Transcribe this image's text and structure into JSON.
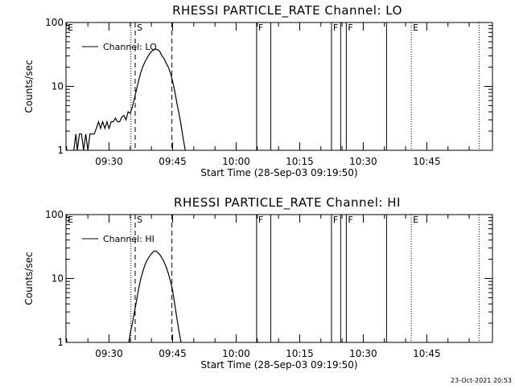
{
  "footer": {
    "timestamp": "23-Oct-2021 20:53"
  },
  "chart_data": [
    {
      "type": "line",
      "title": "RHESSI PARTICLE_RATE Channel: LO",
      "xlabel": "Start Time (28-Sep-03 09:19:50)",
      "ylabel": "Counts/sec",
      "y_scale": "log",
      "ylim": [
        1,
        100
      ],
      "y_ticks": [
        1,
        10,
        100
      ],
      "y_tick_labels": [
        "1",
        "10",
        "100"
      ],
      "xlim": [
        "09:19:50",
        "11:00:30"
      ],
      "x_ticks": [
        "09:30",
        "09:45",
        "10:00",
        "10:15",
        "10:30",
        "10:45"
      ],
      "legend": {
        "label": "Channel: LO",
        "position": "top-left"
      },
      "series": [
        {
          "name": "Channel: LO",
          "x": [
            "09:21:40",
            "09:22:10",
            "09:22:30",
            "09:23:00",
            "09:23:30",
            "09:24:00",
            "09:24:30",
            "09:25:00",
            "09:25:30",
            "09:26:00",
            "09:26:30",
            "09:27:00",
            "09:27:30",
            "09:28:00",
            "09:28:30",
            "09:29:00",
            "09:29:30",
            "09:30:00",
            "09:30:30",
            "09:31:00",
            "09:31:30",
            "09:32:00",
            "09:32:30",
            "09:33:00",
            "09:33:30",
            "09:34:00",
            "09:34:30",
            "09:35:00",
            "09:35:30",
            "09:36:00",
            "09:36:30",
            "09:37:00",
            "09:37:30",
            "09:38:00",
            "09:38:30",
            "09:39:00",
            "09:39:30",
            "09:40:00",
            "09:40:30",
            "09:41:00",
            "09:41:30",
            "09:42:00",
            "09:42:30",
            "09:43:00",
            "09:43:30",
            "09:44:00",
            "09:44:30",
            "09:45:00",
            "09:45:30",
            "09:46:00",
            "09:46:30",
            "09:47:00",
            "09:47:30",
            "09:48:00"
          ],
          "values": [
            1.0,
            1.8,
            1.0,
            1.8,
            1.8,
            1.0,
            1.8,
            1.0,
            1.8,
            1.8,
            1.8,
            2.2,
            2.8,
            2.2,
            2.8,
            2.2,
            2.8,
            2.2,
            2.8,
            2.8,
            3.2,
            2.8,
            2.8,
            3.3,
            3.5,
            3.0,
            4.0,
            3.8,
            4.8,
            6.5,
            9.0,
            12.5,
            16.5,
            20.5,
            24.5,
            28.0,
            32.0,
            35.0,
            37.0,
            38.5,
            37.5,
            35.0,
            30.0,
            27.0,
            23.0,
            20.0,
            16.0,
            12.0,
            8.5,
            5.5,
            3.8,
            2.5,
            1.5,
            1.0
          ]
        }
      ],
      "flag_lines": [
        {
          "label": "E",
          "time": "09:19:50",
          "style": "dotted"
        },
        {
          "label": "",
          "time": "09:35:10",
          "style": "dotted"
        },
        {
          "label": "S",
          "time": "09:36:10",
          "style": "dashed"
        },
        {
          "label": "",
          "time": "09:44:50",
          "style": "dashed"
        },
        {
          "label": "F",
          "time": "10:04:50",
          "style": "solid"
        },
        {
          "label": "",
          "time": "10:08:10",
          "style": "solid"
        },
        {
          "label": "F",
          "time": "10:22:30",
          "style": "solid"
        },
        {
          "label": "",
          "time": "10:24:40",
          "style": "solid"
        },
        {
          "label": "F",
          "time": "10:26:00",
          "style": "solid"
        },
        {
          "label": "",
          "time": "10:35:30",
          "style": "solid"
        },
        {
          "label": "E",
          "time": "10:41:20",
          "style": "dotted"
        },
        {
          "label": "",
          "time": "10:57:20",
          "style": "dotted"
        }
      ]
    },
    {
      "type": "line",
      "title": "RHESSI PARTICLE_RATE Channel: HI",
      "xlabel": "Start Time (28-Sep-03 09:19:50)",
      "ylabel": "Counts/sec",
      "y_scale": "log",
      "ylim": [
        1,
        100
      ],
      "y_ticks": [
        1,
        10,
        100
      ],
      "y_tick_labels": [
        "1",
        "10",
        "100"
      ],
      "xlim": [
        "09:19:50",
        "11:00:30"
      ],
      "x_ticks": [
        "09:30",
        "09:45",
        "10:00",
        "10:15",
        "10:30",
        "10:45"
      ],
      "legend": {
        "label": "Channel: HI",
        "position": "top-left"
      },
      "series": [
        {
          "name": "Channel: HI",
          "x": [
            "09:34:40",
            "09:35:00",
            "09:35:30",
            "09:36:00",
            "09:36:30",
            "09:37:00",
            "09:37:30",
            "09:38:00",
            "09:38:30",
            "09:39:00",
            "09:39:30",
            "09:40:00",
            "09:40:30",
            "09:41:00",
            "09:41:30",
            "09:42:00",
            "09:42:30",
            "09:43:00",
            "09:43:30",
            "09:44:00",
            "09:44:30",
            "09:45:00",
            "09:45:30",
            "09:46:00",
            "09:46:30",
            "09:47:00"
          ],
          "values": [
            1.0,
            1.4,
            2.0,
            3.0,
            4.5,
            7.0,
            10.0,
            13.0,
            16.5,
            19.5,
            22.0,
            24.5,
            26.5,
            27.0,
            25.5,
            23.5,
            21.0,
            18.0,
            15.0,
            12.0,
            9.0,
            6.5,
            4.0,
            2.4,
            1.5,
            1.0
          ]
        }
      ],
      "flag_lines": [
        {
          "label": "E",
          "time": "09:19:50",
          "style": "dotted"
        },
        {
          "label": "",
          "time": "09:35:10",
          "style": "dotted"
        },
        {
          "label": "S",
          "time": "09:36:10",
          "style": "dashed"
        },
        {
          "label": "",
          "time": "09:44:50",
          "style": "dashed"
        },
        {
          "label": "F",
          "time": "10:04:50",
          "style": "solid"
        },
        {
          "label": "",
          "time": "10:08:10",
          "style": "solid"
        },
        {
          "label": "F",
          "time": "10:22:30",
          "style": "solid"
        },
        {
          "label": "",
          "time": "10:24:40",
          "style": "solid"
        },
        {
          "label": "F",
          "time": "10:26:00",
          "style": "solid"
        },
        {
          "label": "",
          "time": "10:35:30",
          "style": "solid"
        },
        {
          "label": "E",
          "time": "10:41:20",
          "style": "dotted"
        },
        {
          "label": "",
          "time": "10:57:20",
          "style": "dotted"
        }
      ]
    }
  ]
}
